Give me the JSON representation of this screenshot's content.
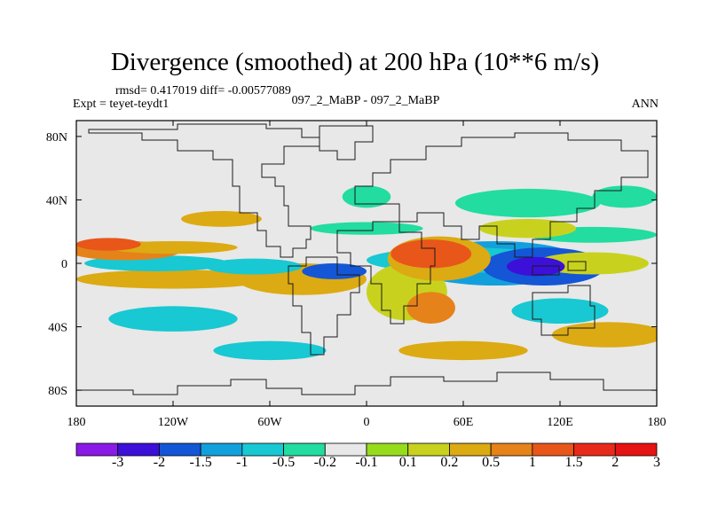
{
  "header": {
    "title": "Divergence (smoothed) at 200 hPa (10**6 m/s)",
    "stats": "rmsd= 0.417019 diff= -0.00577089",
    "expt": "Expt = teyet-teydt1",
    "case": "097_2_MaBP - 097_2_MaBP",
    "season": "ANN"
  },
  "colors": {
    "bins": [
      "#8a1ae6",
      "#3c10d8",
      "#1456d6",
      "#12a0dc",
      "#18c8d2",
      "#22dca0",
      "#e8e8e8",
      "#96dc1c",
      "#c8d21e",
      "#dcaa12",
      "#e6821a",
      "#e8561a",
      "#e82a1a",
      "#e61214"
    ],
    "land_outline": "#1a1a1a",
    "ocean_background": "#e8e8e8"
  },
  "chart_data": {
    "type": "heatmap",
    "title": "Divergence (smoothed) at 200 hPa (10**6 m/s)",
    "projection": "cylindrical-equidistant",
    "xlim": [
      -180,
      180
    ],
    "ylim": [
      -90,
      90
    ],
    "x_ticks": [
      {
        "value": -180,
        "label": "180"
      },
      {
        "value": -120,
        "label": "120W"
      },
      {
        "value": -60,
        "label": "60W"
      },
      {
        "value": 0,
        "label": "0"
      },
      {
        "value": 60,
        "label": "60E"
      },
      {
        "value": 120,
        "label": "120E"
      },
      {
        "value": 180,
        "label": "180"
      }
    ],
    "y_ticks": [
      {
        "value": 80,
        "label": "80N"
      },
      {
        "value": 40,
        "label": "40N"
      },
      {
        "value": 0,
        "label": "0"
      },
      {
        "value": -40,
        "label": "40S"
      },
      {
        "value": -80,
        "label": "80S"
      }
    ],
    "colorbar": {
      "levels": [
        "-3",
        "-2",
        "-1.5",
        "-1",
        "-0.5",
        "-0.2",
        "-0.1",
        "0.1",
        "0.2",
        "0.5",
        "1",
        "1.5",
        "2",
        "3"
      ]
    },
    "features": [
      {
        "lon": 105,
        "lat": -2,
        "rlon": 18,
        "rlat": 6,
        "bin": 1
      },
      {
        "lon": 110,
        "lat": -2,
        "rlon": 38,
        "rlat": 12,
        "bin": 2
      },
      {
        "lon": 80,
        "lat": 0,
        "rlon": 55,
        "rlat": 14,
        "bin": 3
      },
      {
        "lon": 60,
        "lat": 2,
        "rlon": 60,
        "rlat": 8,
        "bin": 4
      },
      {
        "lon": 40,
        "lat": 6,
        "rlon": 25,
        "rlat": 9,
        "bin": 11
      },
      {
        "lon": 45,
        "lat": 3,
        "rlon": 32,
        "rlat": 14,
        "bin": 9
      },
      {
        "lon": 40,
        "lat": -28,
        "rlon": 15,
        "rlat": 10,
        "bin": 10
      },
      {
        "lon": 25,
        "lat": -18,
        "rlon": 25,
        "rlat": 18,
        "bin": 8
      },
      {
        "lon": 100,
        "lat": 38,
        "rlon": 45,
        "rlat": 9,
        "bin": 5
      },
      {
        "lon": 160,
        "lat": 42,
        "rlon": 20,
        "rlat": 7,
        "bin": 5
      },
      {
        "lon": 0,
        "lat": 42,
        "rlon": 15,
        "rlat": 7,
        "bin": 5
      },
      {
        "lon": 100,
        "lat": 22,
        "rlon": 30,
        "rlat": 6,
        "bin": 8
      },
      {
        "lon": 140,
        "lat": 18,
        "rlon": 40,
        "rlat": 5,
        "bin": 5
      },
      {
        "lon": 140,
        "lat": 0,
        "rlon": 35,
        "rlat": 7,
        "bin": 8
      },
      {
        "lon": -150,
        "lat": 8,
        "rlon": 35,
        "rlat": 6,
        "bin": 10
      },
      {
        "lon": -160,
        "lat": 12,
        "rlon": 20,
        "rlat": 4,
        "bin": 11
      },
      {
        "lon": -120,
        "lat": 10,
        "rlon": 40,
        "rlat": 4,
        "bin": 9
      },
      {
        "lon": -130,
        "lat": 0,
        "rlon": 45,
        "rlat": 5,
        "bin": 4
      },
      {
        "lon": -70,
        "lat": -2,
        "rlon": 30,
        "rlat": 5,
        "bin": 4
      },
      {
        "lon": -120,
        "lat": -10,
        "rlon": 60,
        "rlat": 6,
        "bin": 9
      },
      {
        "lon": -20,
        "lat": -5,
        "rlon": 20,
        "rlat": 5,
        "bin": 2
      },
      {
        "lon": -40,
        "lat": -10,
        "rlon": 40,
        "rlat": 10,
        "bin": 9
      },
      {
        "lon": -120,
        "lat": -35,
        "rlon": 40,
        "rlat": 8,
        "bin": 4
      },
      {
        "lon": -60,
        "lat": -55,
        "rlon": 35,
        "rlat": 6,
        "bin": 4
      },
      {
        "lon": 60,
        "lat": -55,
        "rlon": 40,
        "rlat": 6,
        "bin": 9
      },
      {
        "lon": 150,
        "lat": -45,
        "rlon": 35,
        "rlat": 8,
        "bin": 9
      },
      {
        "lon": 120,
        "lat": -30,
        "rlon": 30,
        "rlat": 8,
        "bin": 4
      },
      {
        "lon": -90,
        "lat": 28,
        "rlon": 25,
        "rlat": 5,
        "bin": 9
      },
      {
        "lon": 0,
        "lat": 22,
        "rlon": 35,
        "rlat": 4,
        "bin": 5
      }
    ]
  }
}
